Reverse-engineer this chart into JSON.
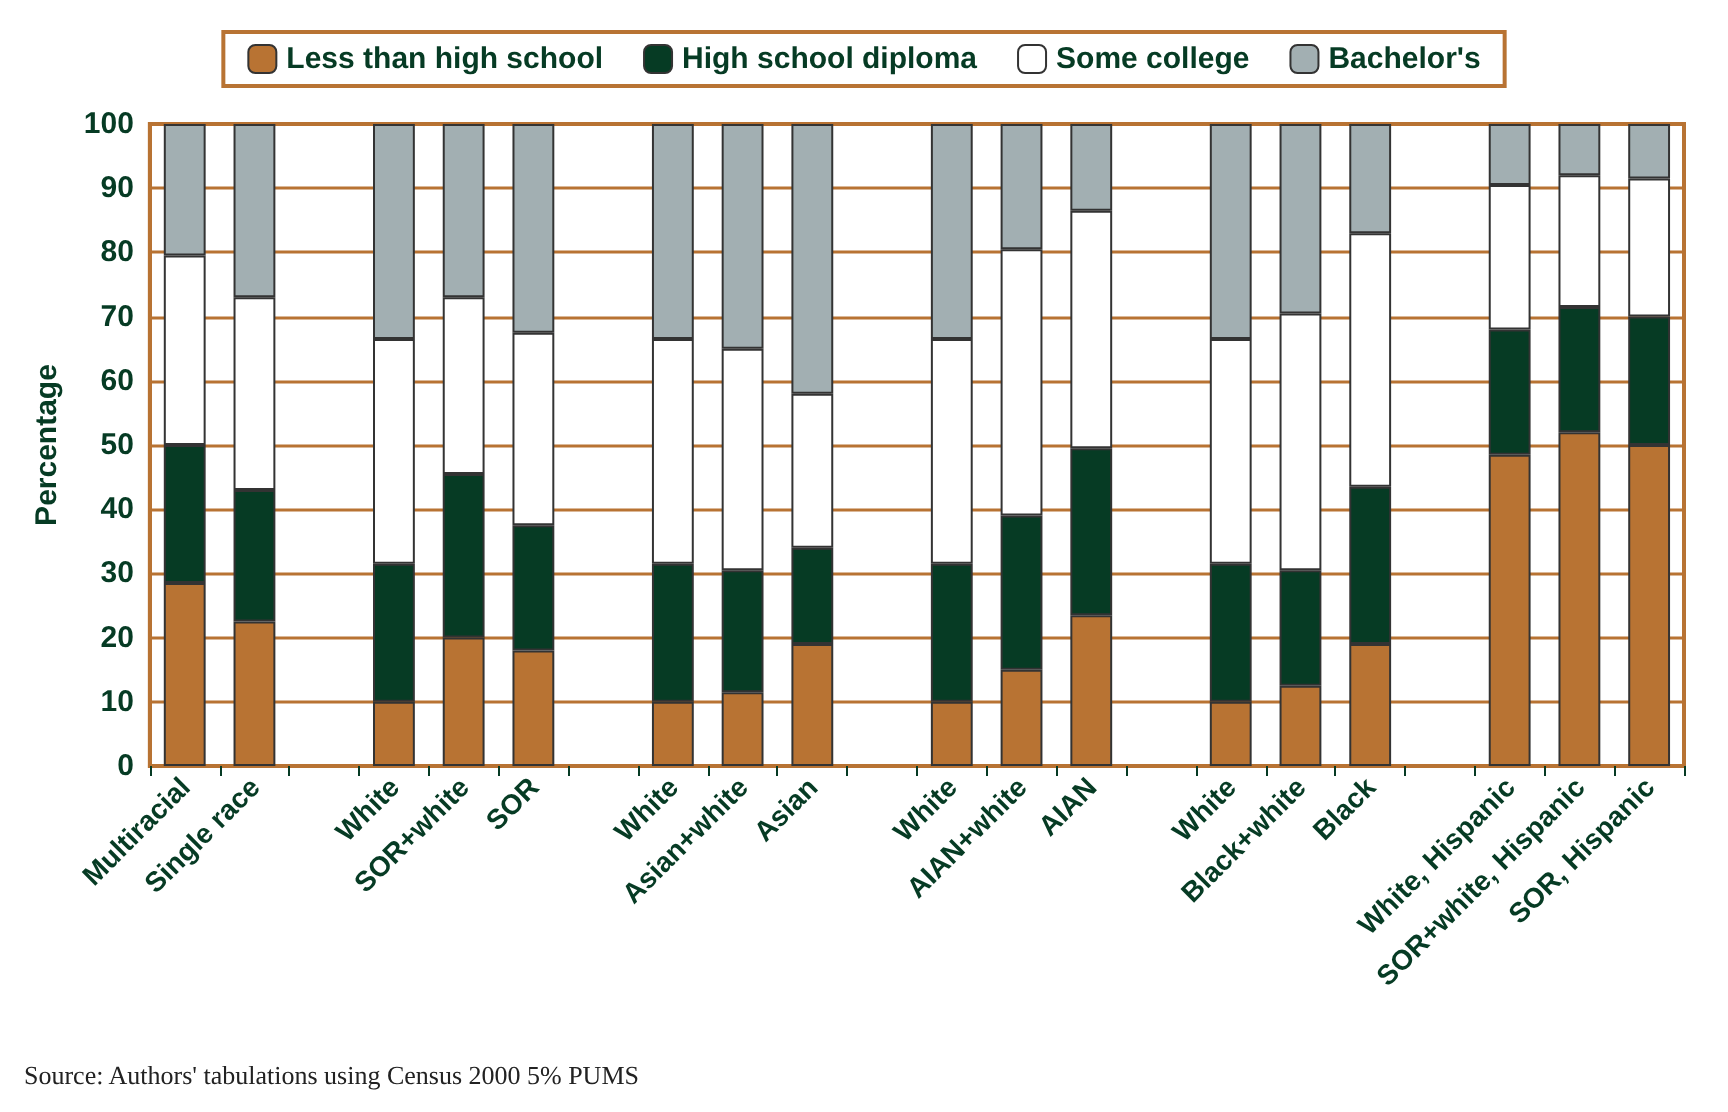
{
  "chart_data": {
    "type": "bar",
    "stacked": true,
    "ylabel": "Percentage",
    "categories": [
      "Multiracial",
      "Single race",
      null,
      "White",
      "SOR+white",
      "SOR",
      null,
      "White",
      "Asian+white",
      "Asian",
      null,
      "White",
      "AIAN+white",
      "AIAN",
      null,
      "White",
      "Black+white",
      "Black",
      null,
      "White, Hispanic",
      "SOR+white, Hispanic",
      "SOR, Hispanic"
    ],
    "series": [
      {
        "name": "Less than high school",
        "color": "#b87333",
        "values": [
          28.5,
          22.5,
          null,
          10,
          20,
          18,
          null,
          10,
          11.5,
          19,
          null,
          10,
          15,
          23.5,
          null,
          10,
          12.5,
          19,
          null,
          48.5,
          52,
          50
        ]
      },
      {
        "name": "High school diploma",
        "color": "#063b24",
        "values": [
          21.5,
          20.5,
          null,
          21.5,
          25.5,
          19.5,
          null,
          21.5,
          19,
          15,
          null,
          21.5,
          24,
          26,
          null,
          21.5,
          18,
          24.5,
          null,
          19.5,
          19.5,
          20
        ]
      },
      {
        "name": "Some college",
        "color": "#ffffff",
        "values": [
          29.5,
          30,
          null,
          35,
          27.5,
          30,
          null,
          35,
          34.5,
          24,
          null,
          35,
          41.5,
          37,
          null,
          35,
          40,
          39.5,
          null,
          22.5,
          20.5,
          21.5
        ]
      },
      {
        "name": "Bachelor's",
        "color": "#a2afb2",
        "values": [
          20.5,
          27,
          null,
          33.5,
          27,
          32.5,
          null,
          33.5,
          35,
          42,
          null,
          33.5,
          19.5,
          13.5,
          null,
          33.5,
          29.5,
          17,
          null,
          9.5,
          8,
          8.5
        ]
      }
    ],
    "ylim": [
      0,
      100
    ],
    "yticks": [
      0,
      10,
      20,
      30,
      40,
      50,
      60,
      70,
      80,
      90,
      100
    ],
    "grid": "y",
    "legend": "top",
    "annotations": [
      "Source: Authors' tabulations using Census 2000 5% PUMS"
    ]
  }
}
